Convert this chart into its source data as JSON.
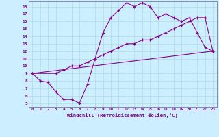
{
  "xlabel": "Windchill (Refroidissement éolien,°C)",
  "bg_color": "#cceeff",
  "line_color": "#880088",
  "grid_color": "#aadddd",
  "spine_color": "#8888aa",
  "xlim": [
    -0.5,
    23.5
  ],
  "ylim": [
    4.5,
    18.7
  ],
  "xticks": [
    0,
    1,
    2,
    3,
    4,
    5,
    6,
    7,
    8,
    9,
    10,
    11,
    12,
    13,
    14,
    15,
    16,
    17,
    18,
    19,
    20,
    21,
    22,
    23
  ],
  "yticks": [
    5,
    6,
    7,
    8,
    9,
    10,
    11,
    12,
    13,
    14,
    15,
    16,
    17,
    18
  ],
  "line1_x": [
    0,
    1,
    2,
    3,
    4,
    5,
    6,
    7,
    8,
    9,
    10,
    11,
    12,
    13,
    14,
    15,
    16,
    17,
    18,
    19,
    20,
    21,
    22,
    23
  ],
  "line1_y": [
    9.0,
    8.0,
    7.8,
    6.5,
    5.5,
    5.5,
    5.0,
    7.5,
    11.0,
    14.5,
    16.5,
    17.5,
    18.5,
    18.0,
    18.5,
    18.0,
    16.5,
    17.0,
    16.5,
    16.0,
    16.5,
    14.5,
    12.5,
    12.0
  ],
  "line2_x": [
    0,
    3,
    4,
    5,
    6,
    7,
    8,
    9,
    10,
    11,
    12,
    13,
    14,
    15,
    16,
    17,
    18,
    19,
    20,
    21,
    22,
    23
  ],
  "line2_y": [
    9.0,
    9.0,
    9.5,
    10.0,
    10.0,
    10.5,
    11.0,
    11.5,
    12.0,
    12.5,
    13.0,
    13.0,
    13.5,
    13.5,
    14.0,
    14.5,
    15.0,
    15.5,
    16.0,
    16.5,
    16.5,
    12.0
  ],
  "line3_x": [
    0,
    23
  ],
  "line3_y": [
    9.0,
    12.0
  ]
}
